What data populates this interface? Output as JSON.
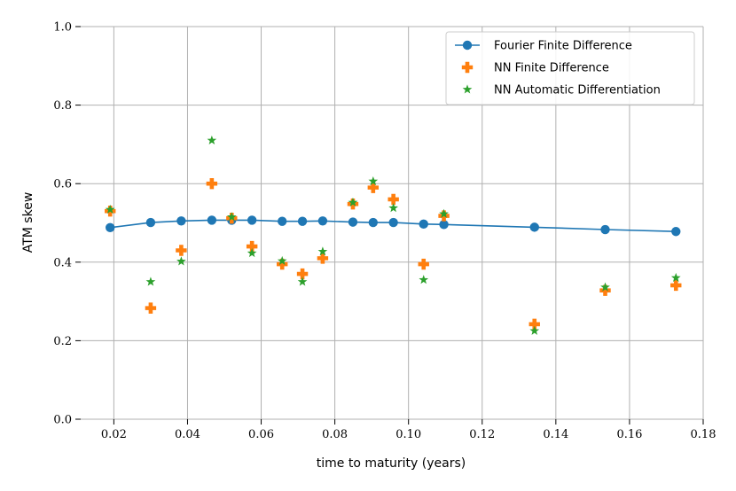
{
  "chart_data": {
    "type": "scatter",
    "xlabel": "time to maturity (years)",
    "ylabel": "ATM skew",
    "xlim": [
      0.011,
      0.18
    ],
    "ylim": [
      0.0,
      1.0
    ],
    "xticks": [
      0.02,
      0.04,
      0.06,
      0.08,
      0.1,
      0.12,
      0.14,
      0.16,
      0.18
    ],
    "xtick_labels": [
      "0.02",
      "0.04",
      "0.06",
      "0.08",
      "0.10",
      "0.12",
      "0.14",
      "0.16",
      "0.18"
    ],
    "yticks": [
      0.0,
      0.2,
      0.4,
      0.6,
      0.8,
      1.0
    ],
    "ytick_labels": [
      "0.0",
      "0.2",
      "0.4",
      "0.6",
      "0.8",
      "1.0"
    ],
    "grid": true,
    "legend_position": "top-right",
    "series": [
      {
        "name": "Fourier Finite Difference",
        "kind": "line-marker",
        "marker": "circle",
        "color": "#1f77b4",
        "x": [
          0.019,
          0.03,
          0.0383,
          0.0466,
          0.052,
          0.0575,
          0.0657,
          0.0712,
          0.0767,
          0.0849,
          0.0904,
          0.0959,
          0.1041,
          0.1096,
          0.1342,
          0.1534,
          0.1726
        ],
        "y": [
          0.488,
          0.501,
          0.505,
          0.507,
          0.507,
          0.507,
          0.504,
          0.504,
          0.505,
          0.502,
          0.501,
          0.501,
          0.497,
          0.496,
          0.489,
          0.483,
          0.478
        ]
      },
      {
        "name": "NN Finite Difference",
        "kind": "marker",
        "marker": "plus",
        "color": "#ff7f0e",
        "x": [
          0.019,
          0.03,
          0.0383,
          0.0466,
          0.052,
          0.0575,
          0.0657,
          0.0712,
          0.0767,
          0.0849,
          0.0904,
          0.0959,
          0.1041,
          0.1096,
          0.1342,
          0.1534,
          0.1726
        ],
        "y": [
          0.53,
          0.283,
          0.43,
          0.6,
          0.512,
          0.44,
          0.395,
          0.37,
          0.41,
          0.548,
          0.59,
          0.56,
          0.395,
          0.518,
          0.242,
          0.328,
          0.341
        ]
      },
      {
        "name": "NN Automatic Differentiation",
        "kind": "marker",
        "marker": "star",
        "color": "#2ca02c",
        "x": [
          0.019,
          0.03,
          0.0383,
          0.0466,
          0.052,
          0.0575,
          0.0657,
          0.0712,
          0.0767,
          0.0849,
          0.0904,
          0.0959,
          0.1041,
          0.1096,
          0.1342,
          0.1534,
          0.1726
        ],
        "y": [
          0.534,
          0.35,
          0.402,
          0.71,
          0.515,
          0.423,
          0.403,
          0.35,
          0.427,
          0.552,
          0.606,
          0.538,
          0.355,
          0.523,
          0.225,
          0.336,
          0.36
        ]
      }
    ]
  }
}
